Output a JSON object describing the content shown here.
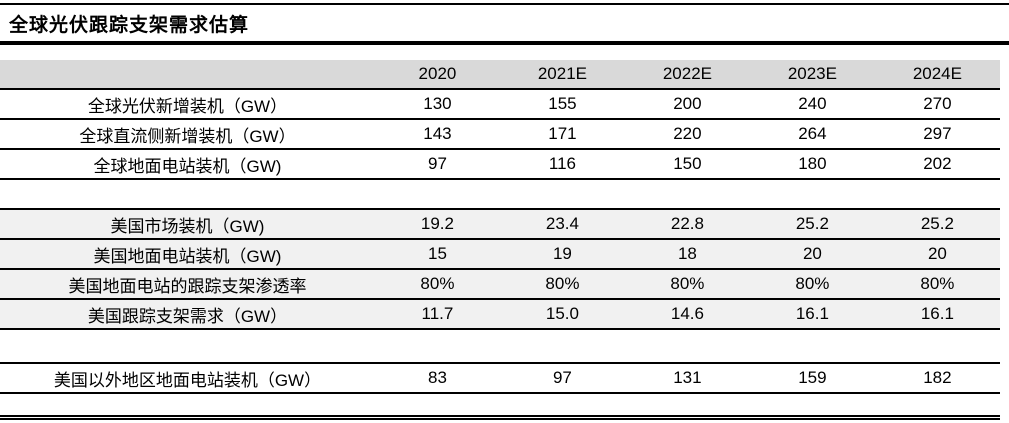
{
  "title": "全球光伏跟踪支架需求估算",
  "chart_data": {
    "type": "table",
    "title": "全球光伏跟踪支架需求估算",
    "columns": [
      "2020",
      "2021E",
      "2022E",
      "2023E",
      "2024E"
    ],
    "sections": [
      {
        "rows": [
          {
            "label": "全球光伏新增装机（GW）",
            "values": [
              "130",
              "155",
              "200",
              "240",
              "270"
            ]
          },
          {
            "label": "全球直流侧新增装机（GW）",
            "values": [
              "143",
              "171",
              "220",
              "264",
              "297"
            ]
          },
          {
            "label": "全球地面电站装机（GW)",
            "values": [
              "97",
              "116",
              "150",
              "180",
              "202"
            ]
          }
        ]
      },
      {
        "rows": [
          {
            "label": "美国市场装机（GW)",
            "values": [
              "19.2",
              "23.4",
              "22.8",
              "25.2",
              "25.2"
            ]
          },
          {
            "label": "美国地面电站装机（GW)",
            "values": [
              "15",
              "19",
              "18",
              "20",
              "20"
            ]
          },
          {
            "label": "美国地面电站的跟踪支架渗透率",
            "values": [
              "80%",
              "80%",
              "80%",
              "80%",
              "80%"
            ]
          },
          {
            "label": "美国跟踪支架需求（GW）",
            "values": [
              "11.7",
              "15.0",
              "14.6",
              "16.1",
              "16.1"
            ]
          }
        ]
      },
      {
        "rows": [
          {
            "label": "美国以外地区地面电站装机（GW）",
            "values": [
              "83",
              "97",
              "131",
              "159",
              "182"
            ]
          }
        ]
      }
    ]
  },
  "colors": {
    "header_bg": "#d9d9d9",
    "band_bg": "#f1f1f1",
    "rule": "#000000",
    "text": "#000000"
  }
}
